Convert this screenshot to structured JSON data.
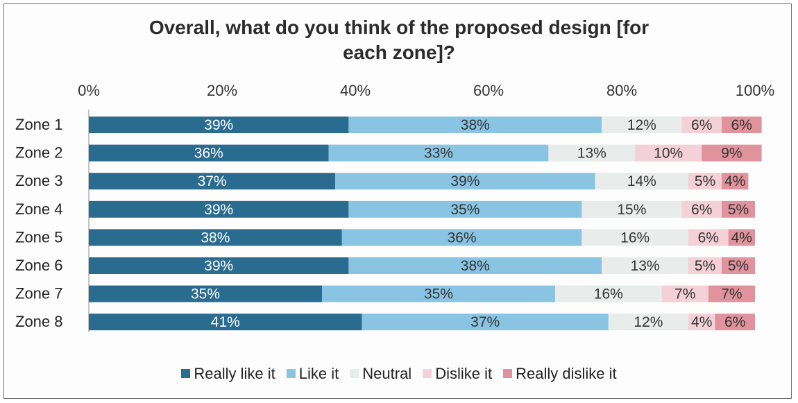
{
  "chart_data": {
    "type": "bar",
    "orientation": "horizontal",
    "stacked": true,
    "title": "Overall, what do you think of the proposed design [for each zone]?",
    "title_lines": [
      "Overall, what do you think of the proposed design [for",
      "each zone]?"
    ],
    "categories": [
      "Zone 1",
      "Zone 2",
      "Zone 3",
      "Zone 4",
      "Zone 5",
      "Zone 6",
      "Zone 7",
      "Zone 8"
    ],
    "xlim": [
      0,
      100
    ],
    "x_ticks": [
      "0%",
      "20%",
      "40%",
      "60%",
      "80%",
      "100%"
    ],
    "axis_position": "top",
    "legend_position": "bottom",
    "series": [
      {
        "name": "Really like it",
        "color": "#2a6c8f",
        "label_color": "#ffffff",
        "values": [
          39,
          36,
          37,
          39,
          38,
          39,
          35,
          41
        ]
      },
      {
        "name": "Like it",
        "color": "#89c4e3",
        "label_color": "#333333",
        "values": [
          38,
          33,
          39,
          35,
          36,
          38,
          35,
          37
        ]
      },
      {
        "name": "Neutral",
        "color": "#e8eceb",
        "label_color": "#333333",
        "values": [
          12,
          13,
          14,
          15,
          16,
          13,
          16,
          12
        ]
      },
      {
        "name": "Dislike it",
        "color": "#f3d1d6",
        "label_color": "#333333",
        "values": [
          6,
          10,
          5,
          6,
          6,
          5,
          7,
          4
        ]
      },
      {
        "name": "Really dislike it",
        "color": "#e0939d",
        "label_color": "#333333",
        "values": [
          6,
          9,
          4,
          5,
          4,
          5,
          7,
          6
        ]
      }
    ]
  }
}
